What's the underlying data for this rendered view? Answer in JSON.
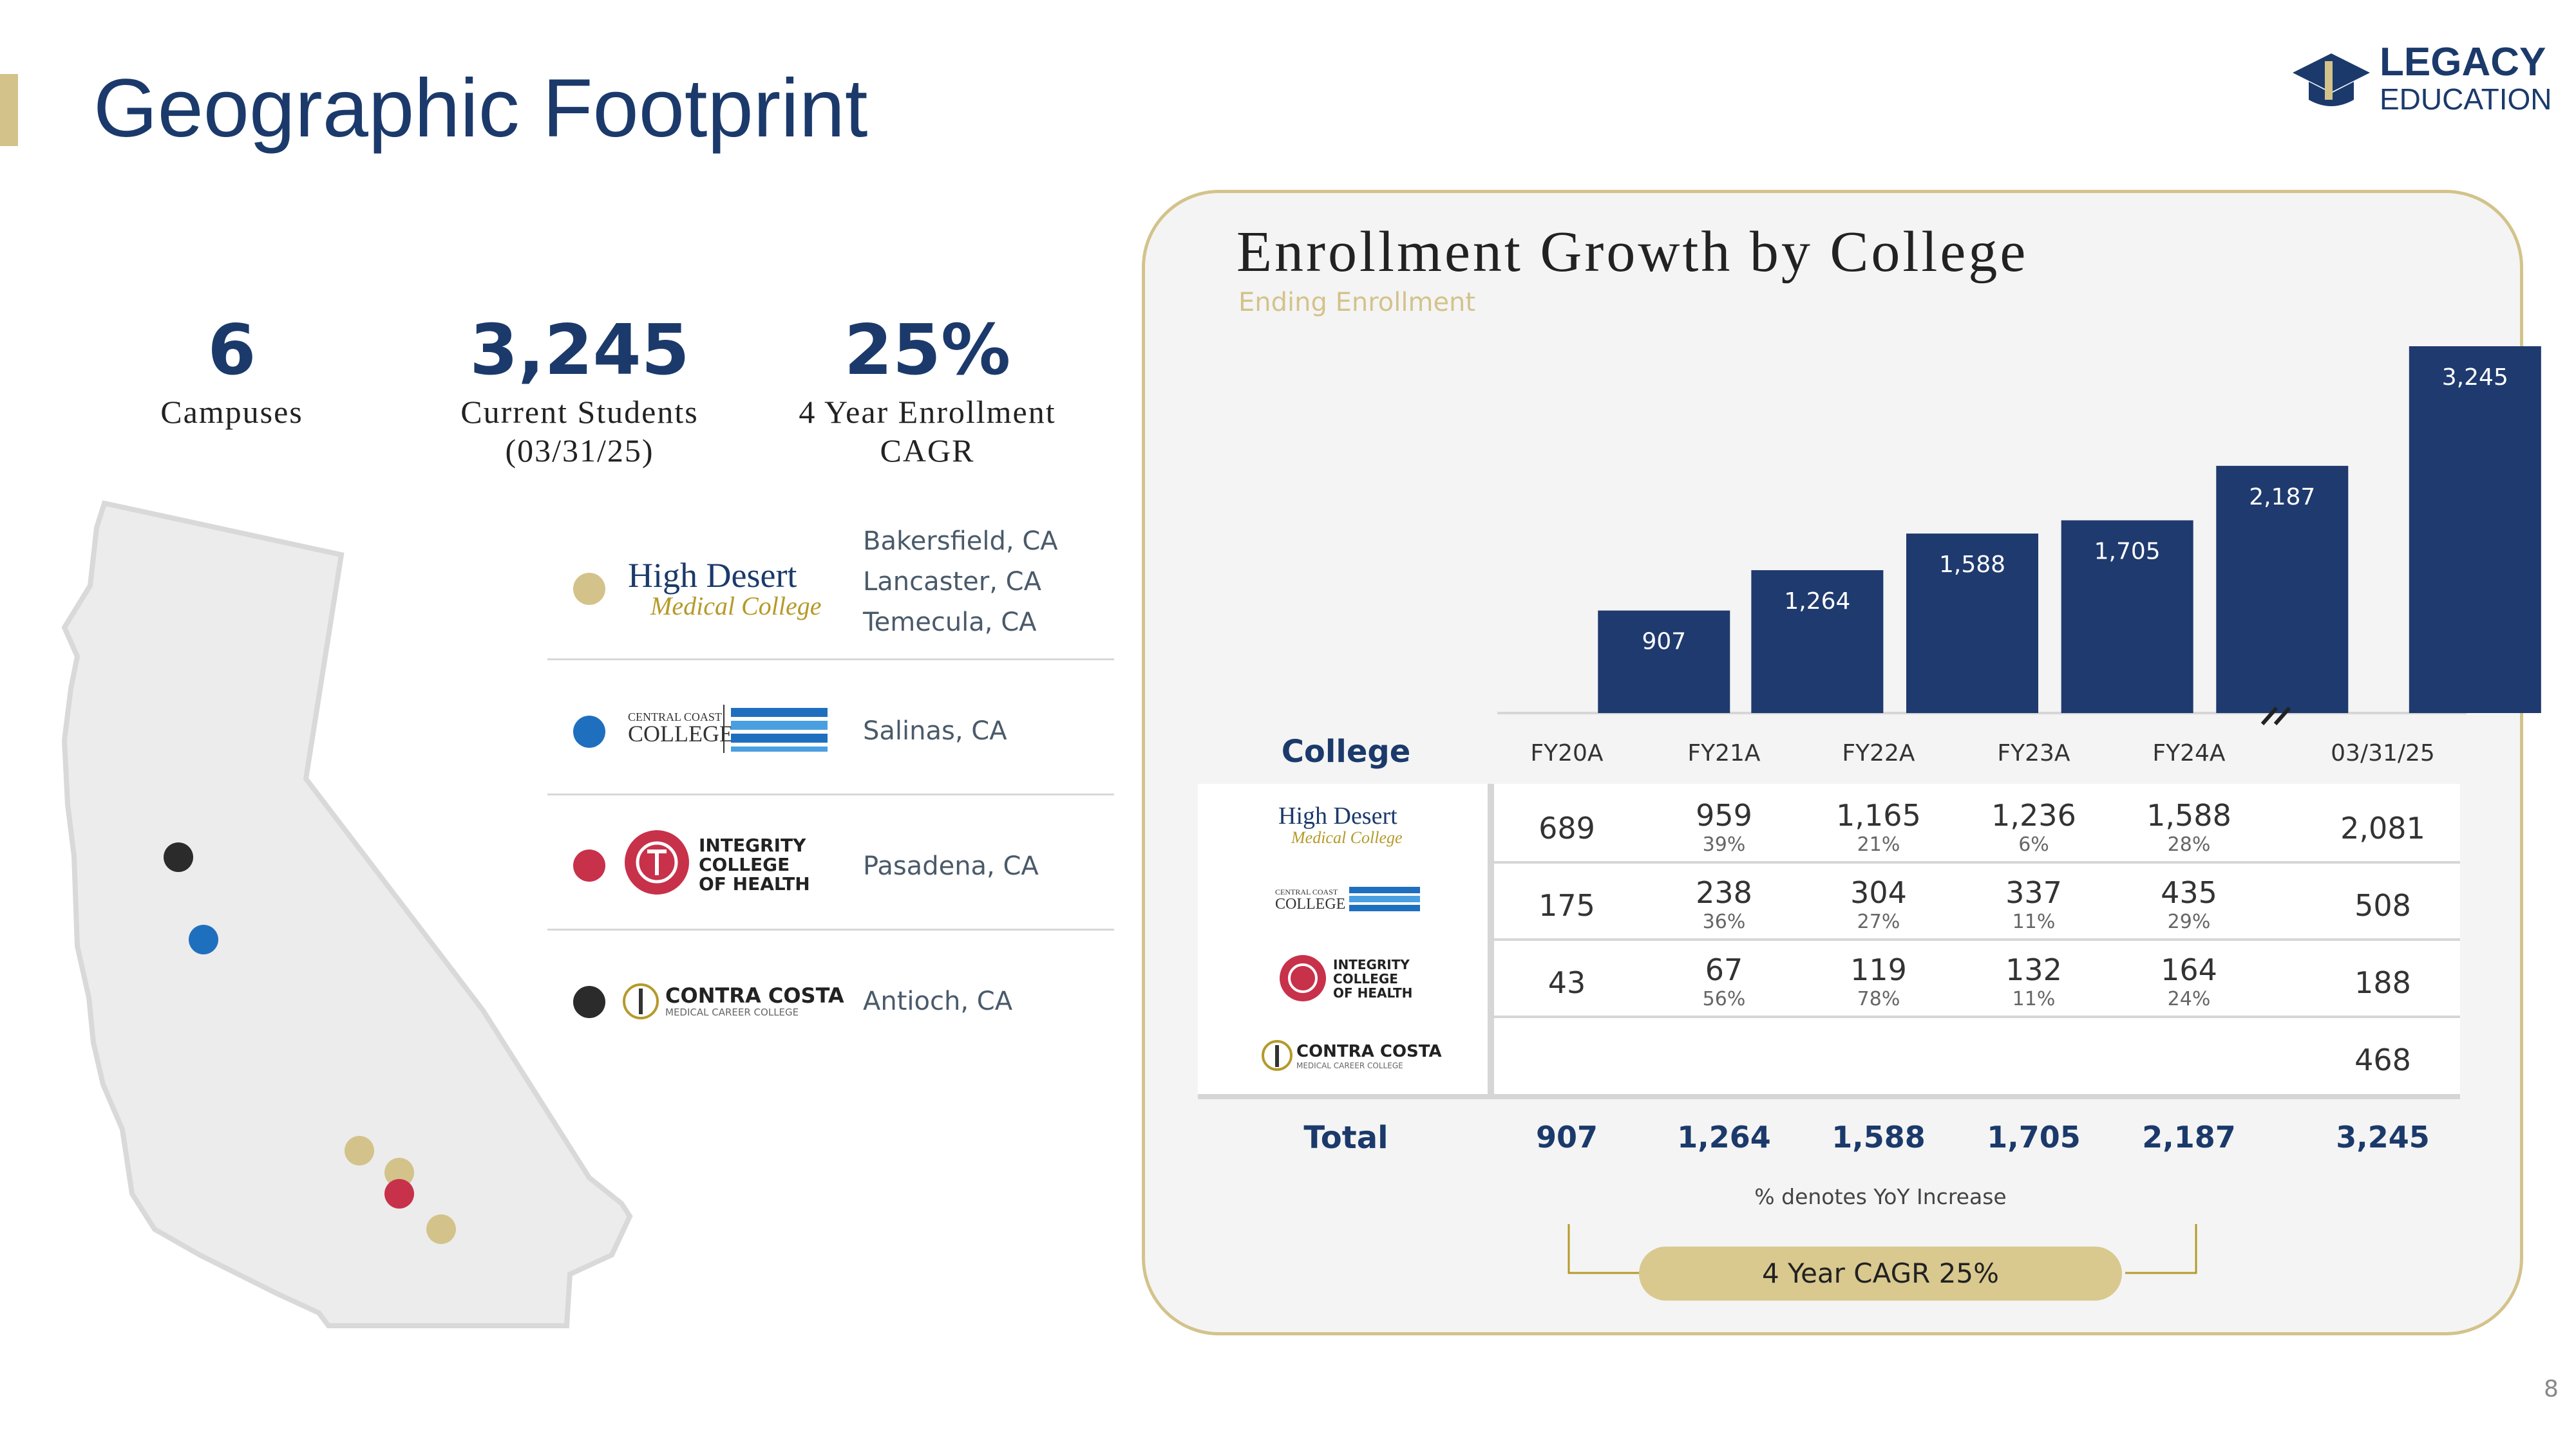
{
  "page": {
    "title": "Geographic Footprint",
    "page_number": "8",
    "logo": {
      "line1": "LEGACY",
      "line2": "EDUCATION",
      "color": "#1b3a6b"
    }
  },
  "kpis": [
    {
      "value": "6",
      "label_line1": "Campuses",
      "label_line2": ""
    },
    {
      "value": "3,245",
      "label_line1": "Current Students",
      "label_line2": "(03/31/25)"
    },
    {
      "value": "25%",
      "label_line1": "4 Year Enrollment",
      "label_line2": "CAGR"
    }
  ],
  "colleges": [
    {
      "name": "High Desert Medical College",
      "logo_line1": "High Desert",
      "logo_line2": "Medical College",
      "locations": [
        "Bakersfield, CA",
        "Lancaster, CA",
        "Temecula, CA"
      ],
      "dot_color": "#d3c38b"
    },
    {
      "name": "Central Coast College",
      "logo_line1": "CENTRAL COAST",
      "logo_line2": "COLLEGE",
      "locations": [
        "Salinas, CA"
      ],
      "dot_color": "#1f6fbf"
    },
    {
      "name": "Integrity College of Health",
      "logo_line1": "INTEGRITY",
      "logo_line2": "COLLEGE",
      "logo_line3": "OF HEALTH",
      "locations": [
        "Pasadena, CA"
      ],
      "dot_color": "#c8314a"
    },
    {
      "name": "Contra Costa Medical Career College",
      "logo_line1": "CONTRA COSTA",
      "logo_line2": "MEDICAL CAREER COLLEGE",
      "locations": [
        "Antioch, CA"
      ],
      "dot_color": "#2b2b2b"
    }
  ],
  "chart_data": {
    "type": "bar",
    "title": "Enrollment Growth by College",
    "subtitle": "Ending Enrollment",
    "categories": [
      "FY20A",
      "FY21A",
      "FY22A",
      "FY23A",
      "FY24A",
      "03/31/25"
    ],
    "values": [
      907,
      1264,
      1588,
      1705,
      2187,
      3245
    ],
    "value_labels": [
      "907",
      "1,264",
      "1,588",
      "1,705",
      "2,187",
      "3,245"
    ],
    "axis_break_after": "FY24A",
    "bar_color": "#1f3a6e",
    "table": {
      "row_header": "College",
      "rows": [
        {
          "college": "High Desert Medical College",
          "values": [
            "689",
            "959",
            "1,165",
            "1,236",
            "1,588",
            "2,081"
          ],
          "yoy": [
            "",
            "39%",
            "21%",
            "6%",
            "28%",
            ""
          ]
        },
        {
          "college": "Central Coast College",
          "values": [
            "175",
            "238",
            "304",
            "337",
            "435",
            "508"
          ],
          "yoy": [
            "",
            "36%",
            "27%",
            "11%",
            "29%",
            ""
          ]
        },
        {
          "college": "Integrity College of Health",
          "values": [
            "43",
            "67",
            "119",
            "132",
            "164",
            "188"
          ],
          "yoy": [
            "",
            "56%",
            "78%",
            "11%",
            "24%",
            ""
          ]
        },
        {
          "college": "Contra Costa Medical Career College",
          "values": [
            "",
            "",
            "",
            "",
            "",
            "468"
          ],
          "yoy": [
            "",
            "",
            "",
            "",
            "",
            ""
          ]
        }
      ],
      "total_label": "Total",
      "totals": [
        "907",
        "1,264",
        "1,588",
        "1,705",
        "2,187",
        "3,245"
      ],
      "footnote": "% denotes YoY Increase",
      "cagr_label": "4 Year CAGR 25%"
    }
  }
}
